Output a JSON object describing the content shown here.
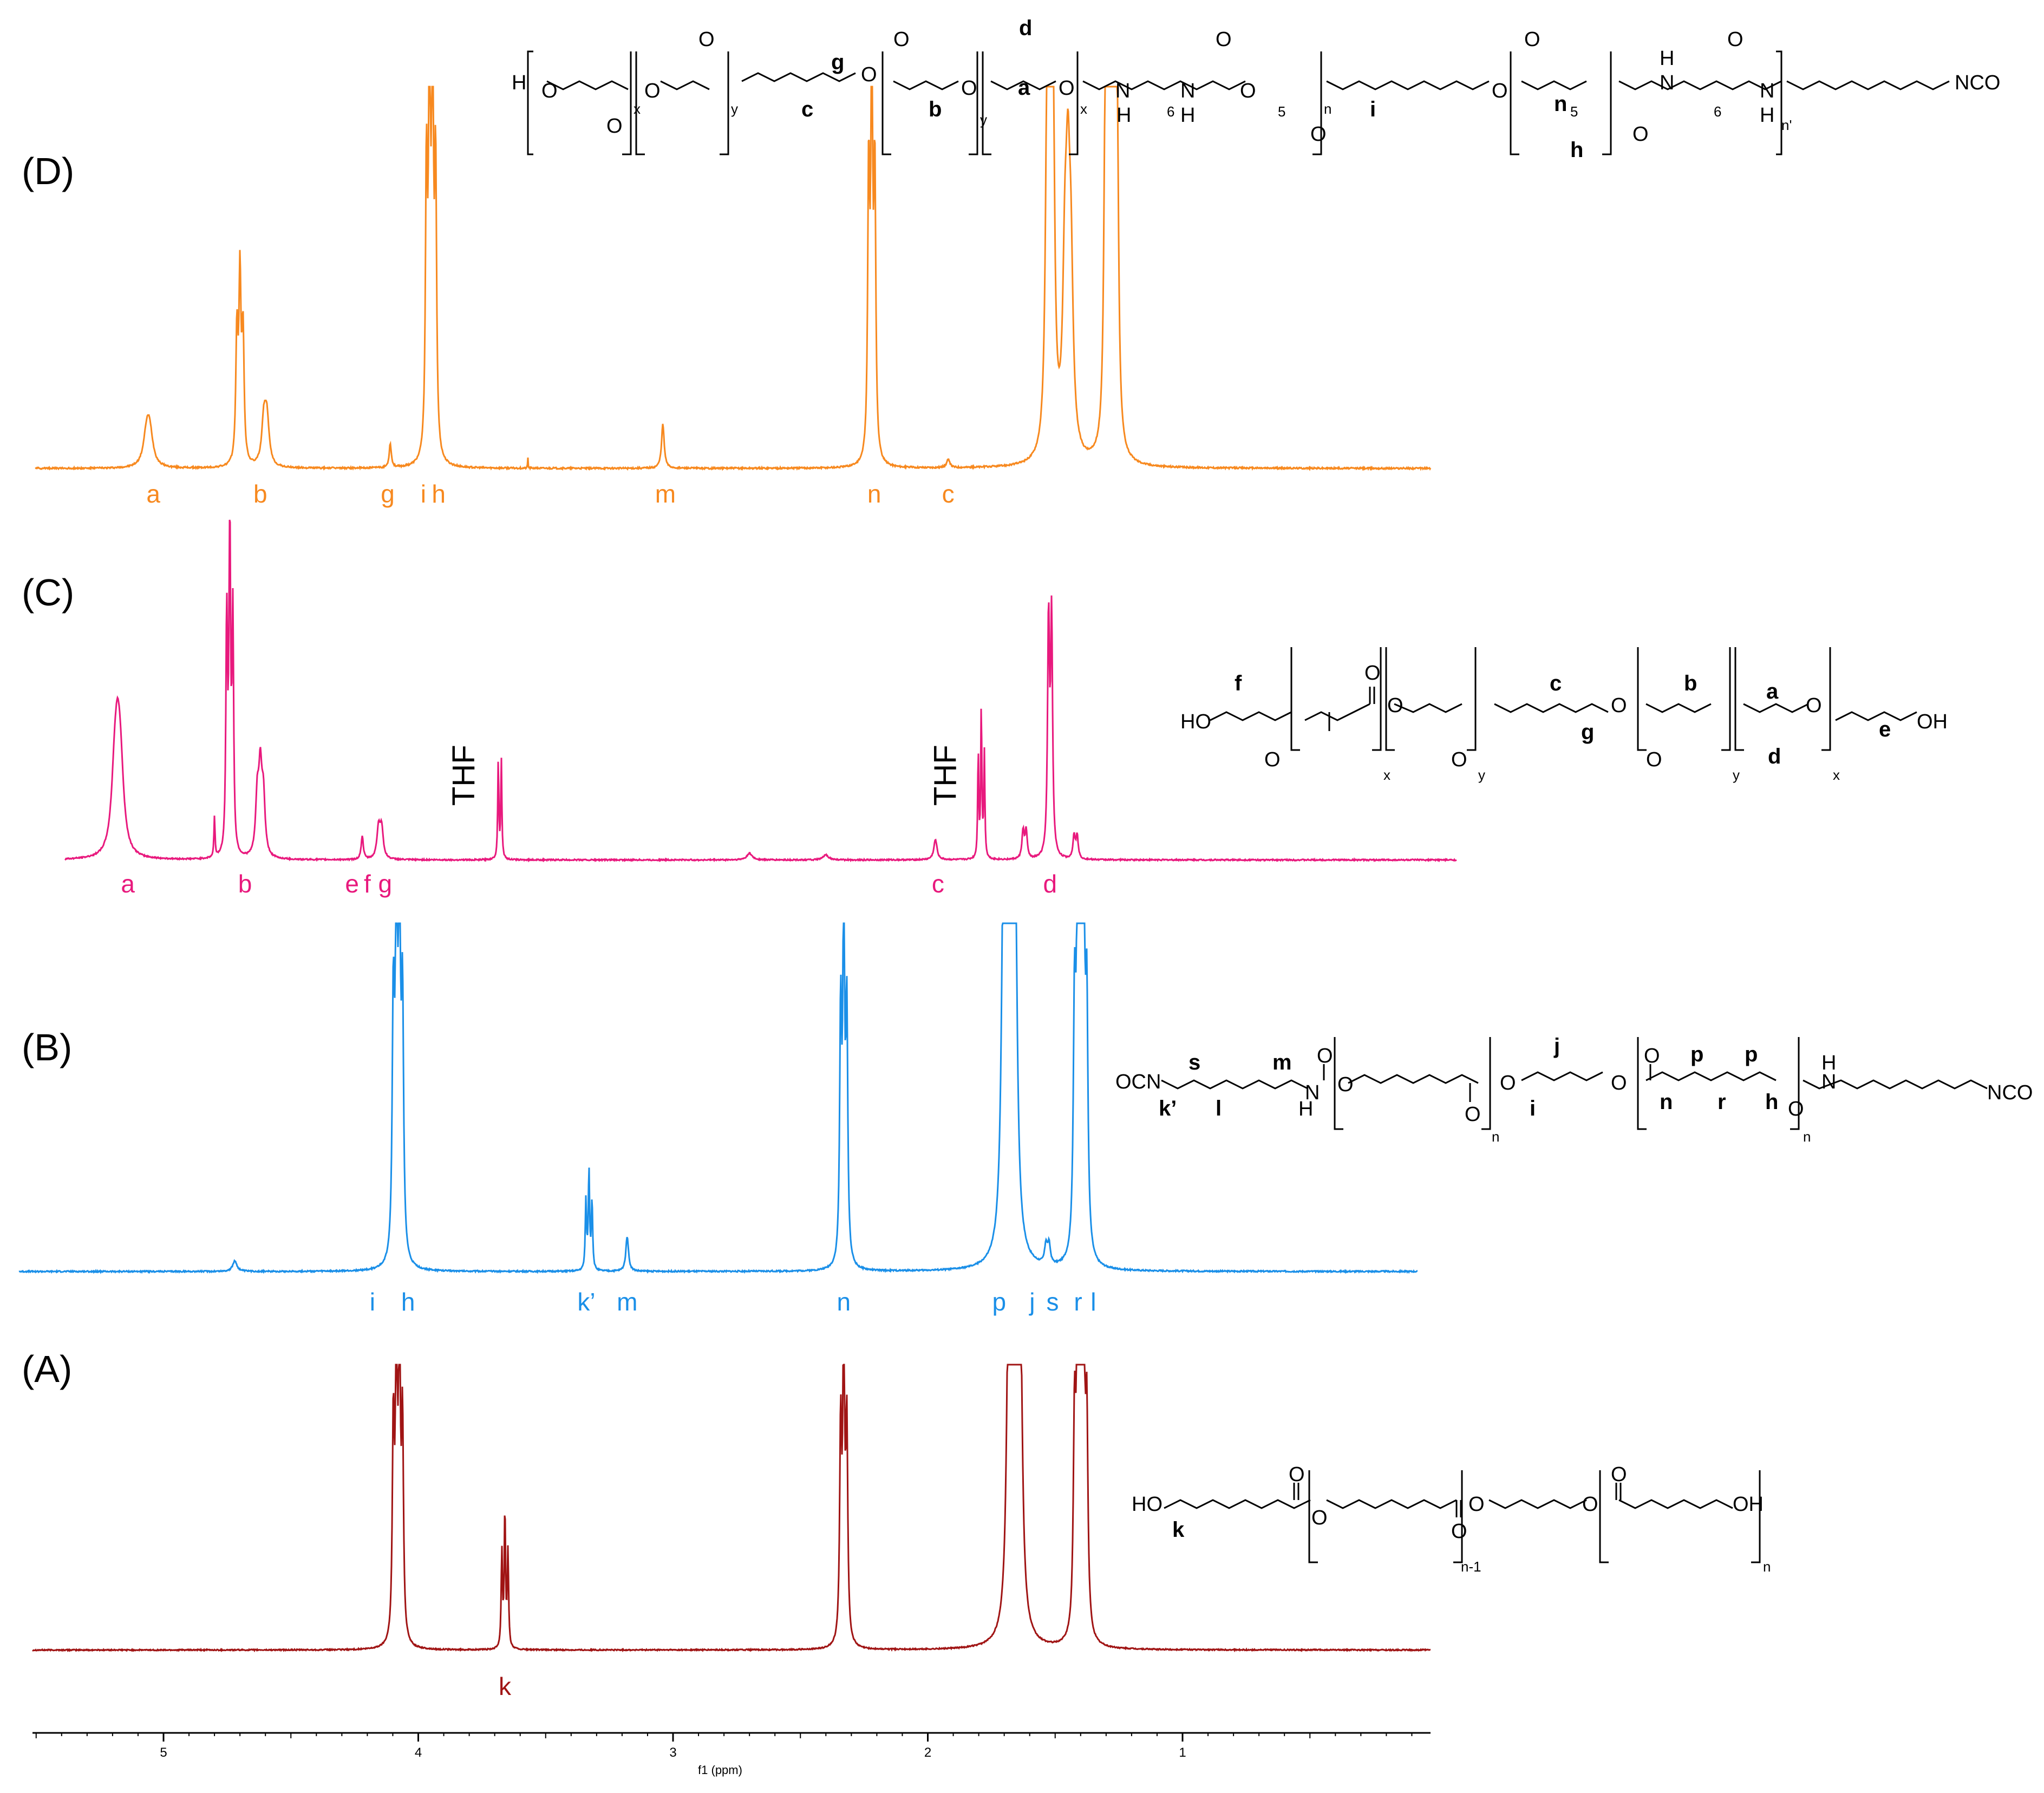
{
  "chart_data": {
    "type": "line",
    "xlabel": "f1 (ppm)",
    "xlim": [
      5.5,
      0.0
    ],
    "x_ticks": [
      "5",
      "4",
      "3",
      "2",
      "1"
    ],
    "panels": [
      {
        "label": "(A)",
        "color": "#a01414",
        "baseline_ppm_range": [
          5.5,
          0.0
        ],
        "peaks": [
          {
            "ppm": 4.08,
            "height": 1.0,
            "width": 0.018,
            "mult": 4
          },
          {
            "ppm": 3.66,
            "height": 0.45,
            "width": 0.012,
            "mult": 3
          },
          {
            "ppm": 2.33,
            "height": 1.0,
            "width": 0.018,
            "mult": 3
          },
          {
            "ppm": 1.66,
            "height": 1.0,
            "width": 0.035,
            "mult": 5
          },
          {
            "ppm": 1.4,
            "height": 0.95,
            "width": 0.022,
            "mult": 5
          }
        ],
        "peak_labels": [
          {
            "ppm": 3.66,
            "text": "k"
          }
        ]
      },
      {
        "label": "(B)",
        "color": "#1a8fe8",
        "baseline_ppm_range": [
          5.5,
          0.0
        ],
        "peaks": [
          {
            "ppm": 4.72,
            "height": 0.03,
            "width": 0.04,
            "mult": 1
          },
          {
            "ppm": 4.08,
            "height": 1.0,
            "width": 0.02,
            "mult": 4
          },
          {
            "ppm": 3.33,
            "height": 0.28,
            "width": 0.012,
            "mult": 3
          },
          {
            "ppm": 3.18,
            "height": 0.1,
            "width": 0.025,
            "mult": 1
          },
          {
            "ppm": 2.33,
            "height": 1.0,
            "width": 0.018,
            "mult": 3
          },
          {
            "ppm": 1.68,
            "height": 1.0,
            "width": 0.035,
            "mult": 5
          },
          {
            "ppm": 1.53,
            "height": 0.08,
            "width": 0.025,
            "mult": 2
          },
          {
            "ppm": 1.4,
            "height": 0.95,
            "width": 0.022,
            "mult": 5
          }
        ],
        "peak_labels": [
          {
            "ppm": 4.18,
            "text": "i"
          },
          {
            "ppm": 4.04,
            "text": "h"
          },
          {
            "ppm": 3.34,
            "text": "k’"
          },
          {
            "ppm": 3.18,
            "text": "m"
          },
          {
            "ppm": 2.33,
            "text": "n"
          },
          {
            "ppm": 1.72,
            "text": "p"
          },
          {
            "ppm": 1.59,
            "text": "j"
          },
          {
            "ppm": 1.51,
            "text": "s"
          },
          {
            "ppm": 1.41,
            "text": "r"
          },
          {
            "ppm": 1.35,
            "text": "l"
          }
        ]
      },
      {
        "label": "(C)",
        "color": "#e8197d",
        "baseline_ppm_range": [
          5.5,
          0.0
        ],
        "peaks": [
          {
            "ppm": 5.18,
            "height": 0.26,
            "width": 0.06,
            "mult": 3
          },
          {
            "ppm": 4.8,
            "height": 0.12,
            "width": 0.01,
            "mult": 1
          },
          {
            "ppm": 4.74,
            "height": 1.0,
            "width": 0.015,
            "mult": 3
          },
          {
            "ppm": 4.62,
            "height": 0.24,
            "width": 0.03,
            "mult": 3
          },
          {
            "ppm": 4.22,
            "height": 0.07,
            "width": 0.02,
            "mult": 1
          },
          {
            "ppm": 4.15,
            "height": 0.13,
            "width": 0.03,
            "mult": 2
          },
          {
            "ppm": 3.68,
            "height": 0.42,
            "width": 0.01,
            "mult": 2
          },
          {
            "ppm": 2.7,
            "height": 0.02,
            "width": 0.05,
            "mult": 1
          },
          {
            "ppm": 2.4,
            "height": 0.015,
            "width": 0.05,
            "mult": 1
          },
          {
            "ppm": 1.97,
            "height": 0.06,
            "width": 0.03,
            "mult": 1
          },
          {
            "ppm": 1.79,
            "height": 0.45,
            "width": 0.01,
            "mult": 3
          },
          {
            "ppm": 1.62,
            "height": 0.12,
            "width": 0.02,
            "mult": 2
          },
          {
            "ppm": 1.52,
            "height": 1.0,
            "width": 0.018,
            "mult": 2
          },
          {
            "ppm": 1.42,
            "height": 0.1,
            "width": 0.02,
            "mult": 2
          }
        ],
        "peak_labels": [
          {
            "ppm": 5.14,
            "text": "a"
          },
          {
            "ppm": 4.68,
            "text": "b"
          },
          {
            "ppm": 4.26,
            "text": "e"
          },
          {
            "ppm": 4.2,
            "text": "f"
          },
          {
            "ppm": 4.13,
            "text": "g"
          },
          {
            "ppm": 1.96,
            "text": "c"
          },
          {
            "ppm": 1.52,
            "text": "d"
          }
        ],
        "side_labels": [
          {
            "ppm": 3.78,
            "text": "THF"
          },
          {
            "ppm": 1.89,
            "text": "THF"
          }
        ]
      },
      {
        "label": "(D)",
        "color": "#f7891f",
        "baseline_ppm_range": [
          5.5,
          0.0
        ],
        "peaks": [
          {
            "ppm": 5.06,
            "height": 0.11,
            "width": 0.06,
            "mult": 2
          },
          {
            "ppm": 4.7,
            "height": 0.45,
            "width": 0.02,
            "mult": 3
          },
          {
            "ppm": 4.6,
            "height": 0.16,
            "width": 0.04,
            "mult": 2
          },
          {
            "ppm": 4.11,
            "height": 0.06,
            "width": 0.02,
            "mult": 1
          },
          {
            "ppm": 3.95,
            "height": 1.0,
            "width": 0.018,
            "mult": 4
          },
          {
            "ppm": 3.57,
            "height": 0.03,
            "width": 0.004,
            "mult": 1
          },
          {
            "ppm": 3.04,
            "height": 0.11,
            "width": 0.025,
            "mult": 1
          },
          {
            "ppm": 2.22,
            "height": 1.0,
            "width": 0.018,
            "mult": 3
          },
          {
            "ppm": 1.92,
            "height": 0.02,
            "width": 0.03,
            "mult": 1
          },
          {
            "ppm": 1.52,
            "height": 1.0,
            "width": 0.03,
            "mult": 3
          },
          {
            "ppm": 1.45,
            "height": 0.55,
            "width": 0.04,
            "mult": 3
          },
          {
            "ppm": 1.28,
            "height": 0.95,
            "width": 0.025,
            "mult": 5
          }
        ],
        "peak_labels": [
          {
            "ppm": 5.04,
            "text": "a"
          },
          {
            "ppm": 4.62,
            "text": "b"
          },
          {
            "ppm": 4.12,
            "text": "g"
          },
          {
            "ppm": 3.98,
            "text": "i"
          },
          {
            "ppm": 3.92,
            "text": "h"
          },
          {
            "ppm": 3.03,
            "text": "m"
          },
          {
            "ppm": 2.21,
            "text": "n"
          },
          {
            "ppm": 1.92,
            "text": "c"
          }
        ]
      }
    ],
    "structures": {
      "A": {
        "texts": [
          "HO",
          "k",
          "O",
          "O",
          "O",
          "O",
          "O",
          "O",
          "OH",
          "n-1",
          "n"
        ]
      },
      "B": {
        "texts": [
          "OCN",
          "k’",
          "s",
          "l",
          "m",
          "H",
          "N",
          "O",
          "O",
          "n",
          "j",
          "i",
          "O",
          "O",
          "O",
          "p",
          "p",
          "n",
          "r",
          "h",
          "O",
          "O",
          "n",
          "H",
          "N",
          "NCO"
        ]
      },
      "C": {
        "texts": [
          "HO",
          "f",
          "O",
          "O",
          "x",
          "O",
          "O",
          "y",
          "c",
          "g",
          "O",
          "b",
          "O",
          "y",
          "a",
          "O",
          "d",
          "x",
          "e",
          "OH"
        ]
      },
      "D": {
        "texts": [
          "H",
          "O",
          "O",
          "x",
          "O",
          "O",
          "y",
          "g",
          "c",
          "O",
          "O",
          "b",
          "y",
          "d",
          "a",
          "O",
          "x",
          "O",
          "N",
          "H",
          "6",
          "N",
          "H",
          "O",
          "O",
          "5",
          "n",
          "O",
          "i",
          "O",
          "O",
          "n",
          "5",
          "h",
          "O",
          "N",
          "H",
          "6",
          "O",
          "N",
          "H",
          "n'",
          "NCO"
        ]
      }
    }
  }
}
